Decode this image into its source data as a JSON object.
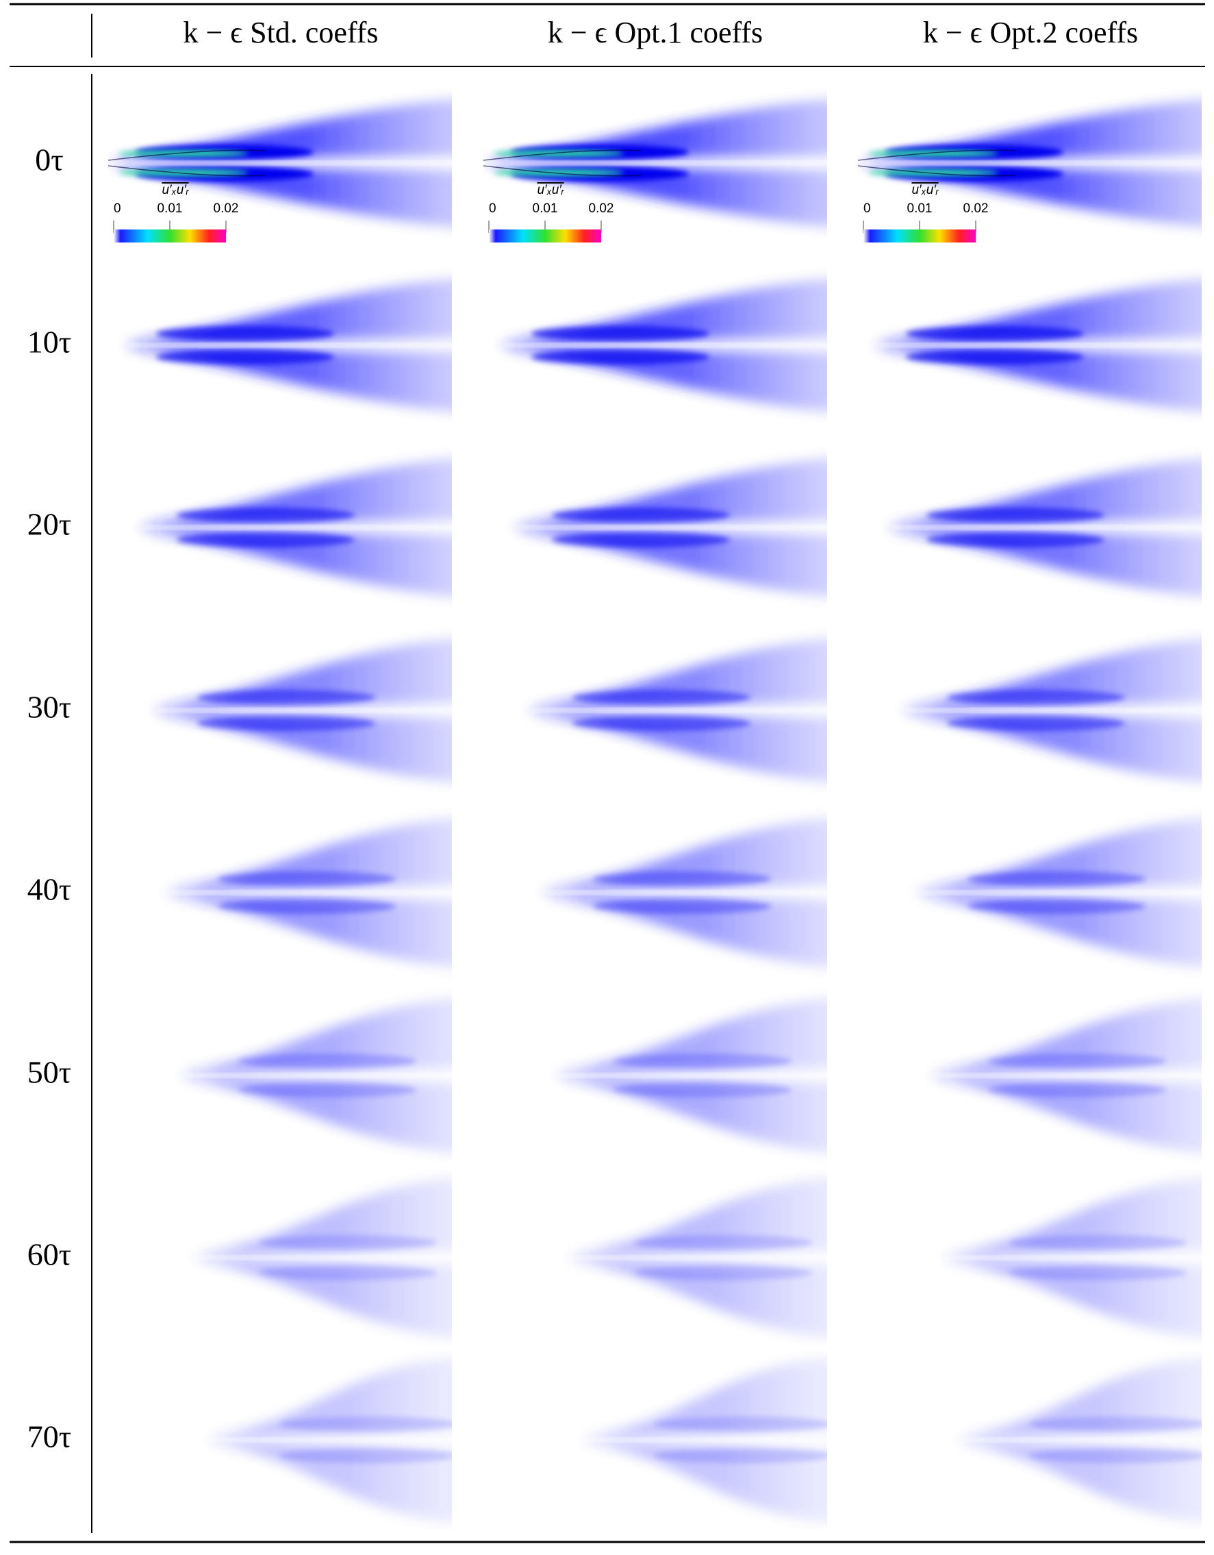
{
  "table": {
    "columns": [
      "k − ϵ Std. coeffs",
      "k − ϵ Opt.1 coeffs",
      "k − ϵ Opt.2 coeffs"
    ],
    "rows": [
      "0τ",
      "10τ",
      "20τ",
      "30τ",
      "40τ",
      "50τ",
      "60τ",
      "70τ"
    ]
  },
  "colorbar": {
    "label": "u′ₓu′ᵣ",
    "ticks": [
      "0",
      "0.01",
      "0.02"
    ]
  }
}
